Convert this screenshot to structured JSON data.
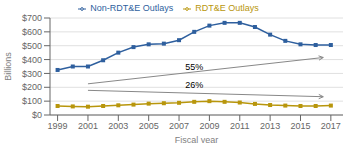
{
  "chart_data": {
    "type": "line",
    "x": [
      1999,
      2000,
      2001,
      2002,
      2003,
      2004,
      2005,
      2006,
      2007,
      2008,
      2009,
      2010,
      2011,
      2012,
      2013,
      2014,
      2015,
      2016,
      2017
    ],
    "series": [
      {
        "name": "Non-RDT&E Outlays",
        "color": "#2e5f9e",
        "marker": "square",
        "values": [
          325,
          350,
          350,
          395,
          450,
          490,
          510,
          515,
          540,
          600,
          645,
          665,
          665,
          635,
          580,
          535,
          510,
          505,
          505
        ]
      },
      {
        "name": "RDT&E Outlays",
        "color": "#b8960c",
        "marker": "square",
        "values": [
          65,
          62,
          60,
          65,
          70,
          75,
          82,
          85,
          88,
          95,
          100,
          95,
          90,
          80,
          72,
          68,
          65,
          65,
          68
        ]
      }
    ],
    "xlabel": "Fiscal year",
    "ylabel": "Billions",
    "xlim": [
      1998.5,
      2017.8
    ],
    "xticks": [
      1999,
      2001,
      2003,
      2005,
      2007,
      2009,
      2011,
      2013,
      2015,
      2017
    ],
    "ylim": [
      0,
      700
    ],
    "yticks": [
      {
        "value": 0,
        "label": "$0"
      },
      {
        "value": 100,
        "label": "$100"
      },
      {
        "value": 200,
        "label": "$200"
      },
      {
        "value": 300,
        "label": "$300"
      },
      {
        "value": 400,
        "label": "$400"
      },
      {
        "value": 500,
        "label": "$500"
      },
      {
        "value": 600,
        "label": "$600"
      },
      {
        "value": 700,
        "label": "$700"
      }
    ],
    "grid": true,
    "legend": "top",
    "annotations": [
      {
        "text": "55%",
        "x": 2008,
        "y": 310,
        "color": "#888888",
        "arrow": {
          "start": [
            2001,
            225
          ],
          "end": [
            2016.5,
            415
          ]
        }
      },
      {
        "text": "26%",
        "x": 2008,
        "y": 178,
        "color": "#888888",
        "arrow": {
          "start": [
            2001,
            178
          ],
          "end": [
            2016.5,
            132
          ]
        }
      }
    ]
  }
}
